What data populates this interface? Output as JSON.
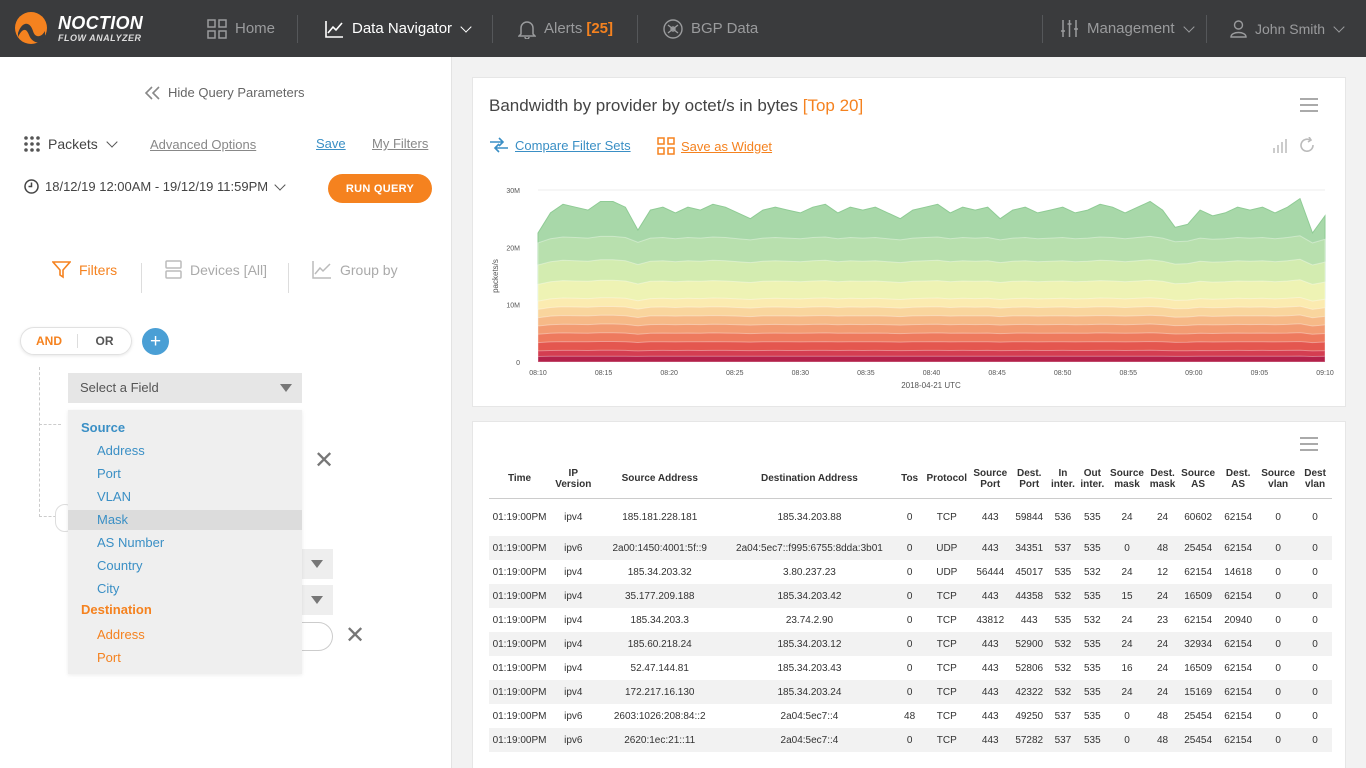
{
  "app": {
    "brand_line1": "NOCTION",
    "brand_line2": "FLOW ANALYZER"
  },
  "nav": {
    "home": "Home",
    "data_navigator": "Data Navigator",
    "alerts": "Alerts",
    "alerts_count": "[25]",
    "bgp_data": "BGP Data",
    "management": "Management",
    "user": "John Smith"
  },
  "query": {
    "hide_label": "Hide Query Parameters",
    "packets_label": "Packets",
    "advanced_options": "Advanced Options",
    "save": "Save",
    "my_filters": "My Filters",
    "date_range": "18/12/19 12:00AM - 19/12/19 11:59PM",
    "run_query": "RUN QUERY"
  },
  "filter_tabs": {
    "filters": "Filters",
    "devices": "Devices [All]",
    "group_by": "Group by"
  },
  "logic": {
    "and": "AND",
    "or": "OR",
    "add": "+"
  },
  "field_select": {
    "placeholder": "Select a Field",
    "groups": [
      {
        "label": "Source",
        "items": [
          "Address",
          "Port",
          "VLAN",
          "Mask",
          "AS Number",
          "Country",
          "City"
        ]
      },
      {
        "label": "Destination",
        "items": [
          "Address",
          "Port"
        ]
      }
    ],
    "selected": "Mask"
  },
  "colors": {
    "accent": "#f5821f",
    "link_blue": "#3a8fc5",
    "topbar": "#3a3b3d"
  },
  "chart_card": {
    "title": "Bandwidth by provider by octet/s in bytes",
    "title_badge": "[Top 20]",
    "compare": "Compare Filter Sets",
    "save_widget": "Save as Widget"
  },
  "chart_data": {
    "type": "area",
    "stacked": true,
    "ylabel": "packets/s",
    "xlabel": "2018-04-21 UTC",
    "y_ticks": [
      "0",
      "10M",
      "20M",
      "30M"
    ],
    "ylim": [
      0,
      30000000
    ],
    "x_ticks": [
      "08:10",
      "08:15",
      "08:20",
      "08:25",
      "08:30",
      "08:35",
      "08:40",
      "08:45",
      "08:50",
      "08:55",
      "09:00",
      "09:05",
      "09:10"
    ],
    "series_colors": [
      "#b3214a",
      "#d43d51",
      "#e4574f",
      "#ee7a5e",
      "#f29b72",
      "#f6b987",
      "#f9d59d",
      "#fbebb0",
      "#eef3b4",
      "#d3ecb0",
      "#b8e0ae",
      "#a8d8a9"
    ],
    "layer_tops": [
      1000000,
      2000000,
      3500000,
      5000000,
      6500000,
      8000000,
      9500000,
      11000000,
      14000000,
      17500000,
      21500000,
      26000000
    ],
    "top_series_values": [
      22.5,
      26,
      27.5,
      27,
      26.5,
      28,
      28,
      27,
      23,
      26.5,
      27,
      26,
      27,
      26.5,
      27.5,
      27,
      26,
      25,
      26.5,
      27,
      26.5,
      26,
      27,
      27.5,
      26,
      27,
      26.5,
      27,
      26,
      25,
      26.5,
      27,
      27.5,
      26,
      27,
      26.5,
      27,
      25,
      26.5,
      27,
      26,
      26.5,
      27,
      26,
      26.5,
      27.5,
      27,
      26,
      27,
      28,
      26.5,
      23.5,
      24,
      26.5,
      25.5,
      26,
      27,
      26.5,
      27,
      26,
      27,
      28.5,
      22.5,
      25.5
    ]
  },
  "table": {
    "columns": [
      "Time",
      "IP Version",
      "Source Address",
      "Destination Address",
      "Tos",
      "Protocol",
      "Source Port",
      "Dest. Port",
      "In inter.",
      "Out inter.",
      "Source mask",
      "Dest. mask",
      "Source AS",
      "Dest. AS",
      "Source vlan",
      "Dest vlan"
    ],
    "rows": [
      [
        "01:19:00PM",
        "ipv4",
        "185.181.228.181",
        "185.34.203.88",
        "0",
        "TCP",
        "443",
        "59844",
        "536",
        "535",
        "24",
        "24",
        "60602",
        "62154",
        "0",
        "0"
      ],
      [
        "01:19:00PM",
        "ipv6",
        "2a00:1450:4001:5f::9",
        "2a04:5ec7::f995:6755:8dda:3b01",
        "0",
        "UDP",
        "443",
        "34351",
        "537",
        "535",
        "0",
        "48",
        "25454",
        "62154",
        "0",
        "0"
      ],
      [
        "01:19:00PM",
        "ipv4",
        "185.34.203.32",
        "3.80.237.23",
        "0",
        "UDP",
        "56444",
        "45017",
        "535",
        "532",
        "24",
        "12",
        "62154",
        "14618",
        "0",
        "0"
      ],
      [
        "01:19:00PM",
        "ipv4",
        "35.177.209.188",
        "185.34.203.42",
        "0",
        "TCP",
        "443",
        "44358",
        "532",
        "535",
        "15",
        "24",
        "16509",
        "62154",
        "0",
        "0"
      ],
      [
        "01:19:00PM",
        "ipv4",
        "185.34.203.3",
        "23.74.2.90",
        "0",
        "TCP",
        "43812",
        "443",
        "535",
        "532",
        "24",
        "23",
        "62154",
        "20940",
        "0",
        "0"
      ],
      [
        "01:19:00PM",
        "ipv4",
        "185.60.218.24",
        "185.34.203.12",
        "0",
        "TCP",
        "443",
        "52900",
        "532",
        "535",
        "24",
        "24",
        "32934",
        "62154",
        "0",
        "0"
      ],
      [
        "01:19:00PM",
        "ipv4",
        "52.47.144.81",
        "185.34.203.43",
        "0",
        "TCP",
        "443",
        "52806",
        "532",
        "535",
        "16",
        "24",
        "16509",
        "62154",
        "0",
        "0"
      ],
      [
        "01:19:00PM",
        "ipv4",
        "172.217.16.130",
        "185.34.203.24",
        "0",
        "TCP",
        "443",
        "42322",
        "532",
        "535",
        "24",
        "24",
        "15169",
        "62154",
        "0",
        "0"
      ],
      [
        "01:19:00PM",
        "ipv6",
        "2603:1026:208:84::2",
        "2a04:5ec7::4",
        "48",
        "TCP",
        "443",
        "49250",
        "537",
        "535",
        "0",
        "48",
        "25454",
        "62154",
        "0",
        "0"
      ],
      [
        "01:19:00PM",
        "ipv6",
        "2620:1ec:21::11",
        "2a04:5ec7::4",
        "0",
        "TCP",
        "443",
        "57282",
        "537",
        "535",
        "0",
        "48",
        "25454",
        "62154",
        "0",
        "0"
      ]
    ]
  }
}
